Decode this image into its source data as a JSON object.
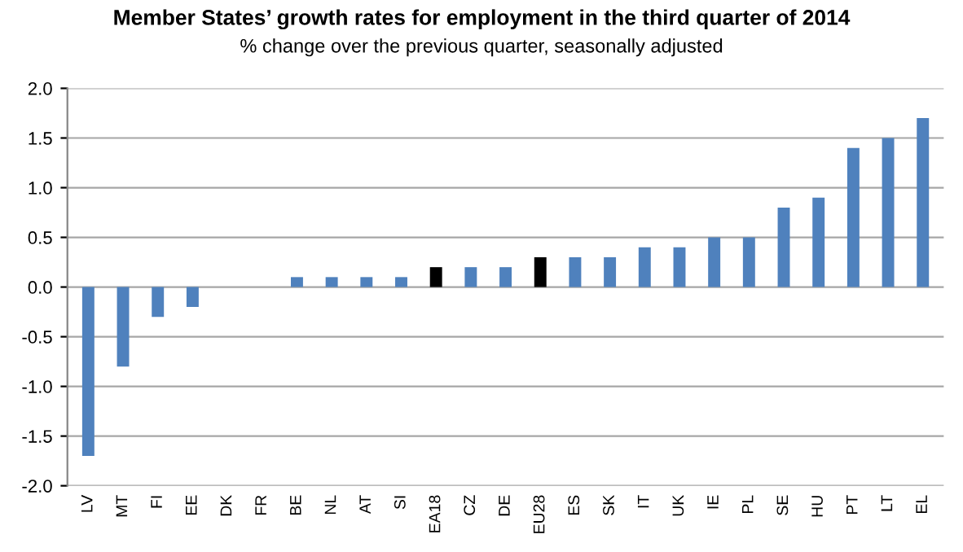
{
  "chart_data": {
    "type": "bar",
    "title": "Member States’ growth rates for employment in the third quarter of 2014",
    "subtitle": "% change over the previous quarter, seasonally adjusted",
    "categories": [
      "LV",
      "MT",
      "FI",
      "EE",
      "DK",
      "FR",
      "BE",
      "NL",
      "AT",
      "SI",
      "EA18",
      "CZ",
      "DE",
      "EU28",
      "ES",
      "SK",
      "IT",
      "UK",
      "IE",
      "PL",
      "SE",
      "HU",
      "PT",
      "LT",
      "EL"
    ],
    "values": [
      -1.7,
      -0.8,
      -0.3,
      -0.2,
      0,
      0,
      0.1,
      0.1,
      0.1,
      0.1,
      0.2,
      0.2,
      0.2,
      0.3,
      0.3,
      0.3,
      0.4,
      0.4,
      0.5,
      0.5,
      0.8,
      0.9,
      1.4,
      1.5,
      1.7
    ],
    "colors": [
      "#4f81bd",
      "#4f81bd",
      "#4f81bd",
      "#4f81bd",
      "#4f81bd",
      "#4f81bd",
      "#4f81bd",
      "#4f81bd",
      "#4f81bd",
      "#4f81bd",
      "#000000",
      "#4f81bd",
      "#4f81bd",
      "#000000",
      "#4f81bd",
      "#4f81bd",
      "#4f81bd",
      "#4f81bd",
      "#4f81bd",
      "#4f81bd",
      "#4f81bd",
      "#4f81bd",
      "#4f81bd",
      "#4f81bd",
      "#4f81bd"
    ],
    "ylim": [
      -2,
      2
    ],
    "yticks": [
      {
        "value": -2,
        "label": "-2.0"
      },
      {
        "value": -1.5,
        "label": "-1.5"
      },
      {
        "value": -1,
        "label": "-1.0"
      },
      {
        "value": -0.5,
        "label": "-0.5"
      },
      {
        "value": 0,
        "label": "0.0"
      },
      {
        "value": 0.5,
        "label": "0.5"
      },
      {
        "value": 1,
        "label": "1.0"
      },
      {
        "value": 1.5,
        "label": "1.5"
      },
      {
        "value": 2,
        "label": "2.0"
      }
    ],
    "grid": "y"
  }
}
